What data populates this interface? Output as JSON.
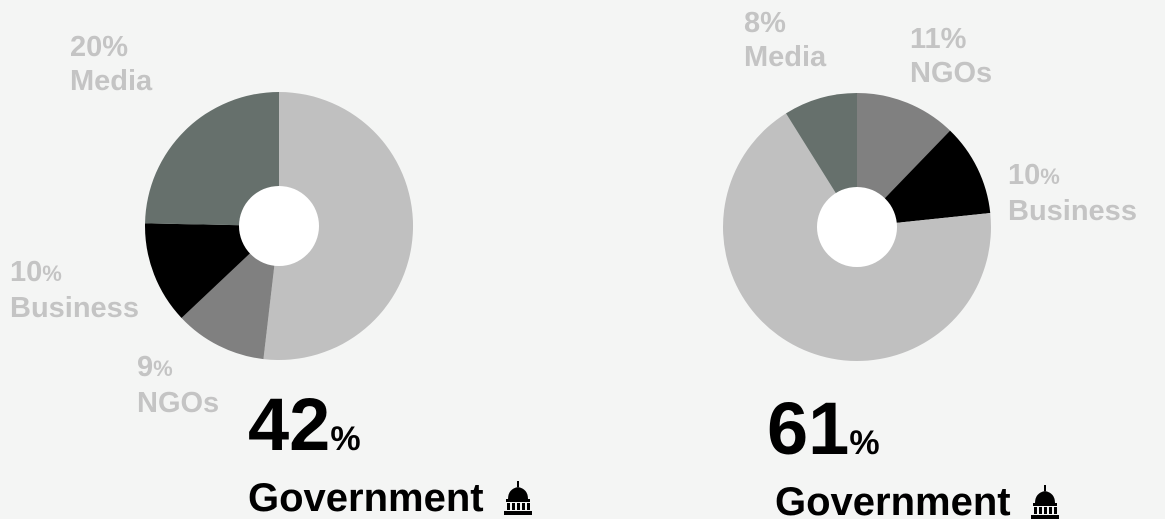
{
  "colors": {
    "background": "#f4f5f4",
    "label": "#c4c4c4",
    "government": "#c0c0c0",
    "ngos": "#808080",
    "business": "#000000",
    "media": "#66706c"
  },
  "chart_data": [
    {
      "type": "pie",
      "style": "donut",
      "slices": [
        {
          "name": "Government",
          "value": 42,
          "color": "#c0c0c0"
        },
        {
          "name": "NGOs",
          "value": 9,
          "color": "#808080"
        },
        {
          "name": "Business",
          "value": 10,
          "color": "#000000"
        },
        {
          "name": "Media",
          "value": 20,
          "color": "#66706c"
        }
      ],
      "labels": {
        "media": {
          "pct": "20%",
          "name": "Media"
        },
        "business": {
          "pct": "10",
          "pct_sign": "%",
          "name": "Business"
        },
        "ngos": {
          "pct": "9",
          "pct_sign": "%",
          "name": "NGOs"
        }
      },
      "headline": {
        "value": "42",
        "unit": "%",
        "category": "Government",
        "icon": "capitol-building-icon"
      }
    },
    {
      "type": "pie",
      "style": "donut",
      "slices": [
        {
          "name": "NGOs",
          "value": 11,
          "color": "#808080"
        },
        {
          "name": "Business",
          "value": 10,
          "color": "#000000"
        },
        {
          "name": "Government",
          "value": 61,
          "color": "#c0c0c0"
        },
        {
          "name": "Media",
          "value": 8,
          "color": "#66706c"
        }
      ],
      "labels": {
        "media": {
          "pct": "8%",
          "name": "Media"
        },
        "ngos": {
          "pct": "11%",
          "name": "NGOs"
        },
        "business": {
          "pct": "10",
          "pct_sign": "%",
          "name": "Business"
        }
      },
      "headline": {
        "value": "61",
        "unit": "%",
        "category": "Government",
        "icon": "capitol-building-icon"
      }
    }
  ]
}
